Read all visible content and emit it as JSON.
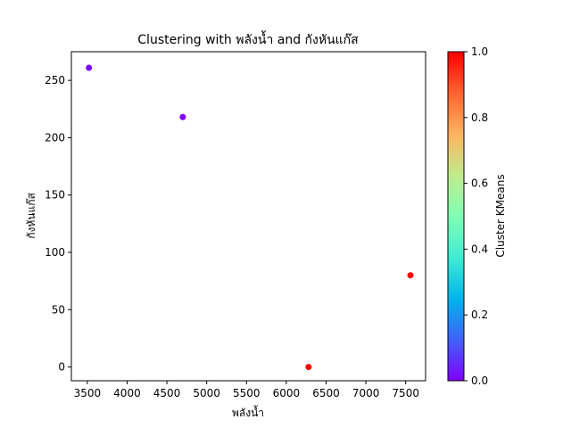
{
  "chart_data": {
    "type": "scatter",
    "title": "Clustering with พลังน้ำ and กังหันแก๊ส",
    "xlabel": "พลังน้ำ",
    "ylabel": "กังหันแก๊ส",
    "xlim": [
      3300,
      7750
    ],
    "ylim": [
      -12,
      275
    ],
    "x_ticks": [
      3500,
      4000,
      4500,
      5000,
      5500,
      6000,
      6500,
      7000,
      7500
    ],
    "y_ticks": [
      0,
      50,
      100,
      150,
      200,
      250
    ],
    "grid": false,
    "points": [
      {
        "x": 3520,
        "y": 261,
        "cluster": 0
      },
      {
        "x": 4700,
        "y": 218,
        "cluster": 0
      },
      {
        "x": 6280,
        "y": 0,
        "cluster": 1
      },
      {
        "x": 7560,
        "y": 80,
        "cluster": 1
      }
    ],
    "colorbar": {
      "label": "Cluster KMeans",
      "min": 0.0,
      "max": 1.0,
      "ticks": [
        "0.0",
        "0.2",
        "0.4",
        "0.6",
        "0.8",
        "1.0"
      ],
      "colormap": "rainbow",
      "low_color": "#8000ff",
      "high_color": "#ff0000"
    }
  }
}
